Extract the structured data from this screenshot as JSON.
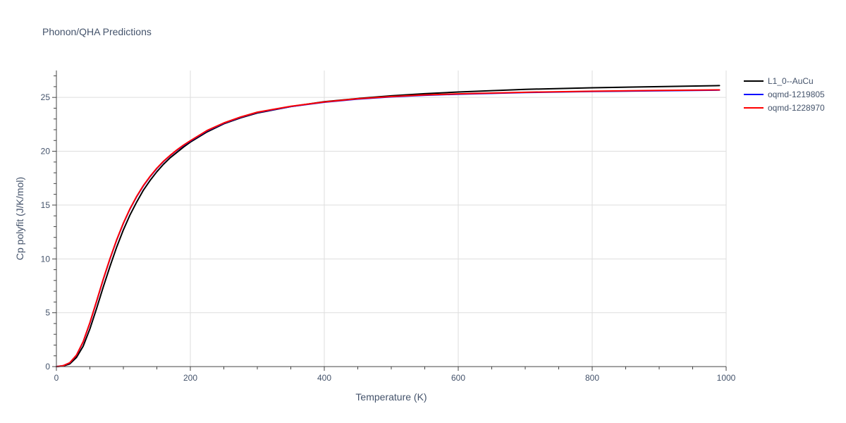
{
  "chart_data": {
    "type": "line",
    "title": "Phonon/QHA Predictions",
    "xlabel": "Temperature (K)",
    "ylabel": "Cp polyfit (J/K/mol)",
    "xlim": [
      0,
      1000
    ],
    "ylim": [
      0,
      27.5
    ],
    "x_ticks": [
      0,
      200,
      400,
      600,
      800,
      1000
    ],
    "y_ticks": [
      0,
      5,
      10,
      15,
      20,
      25
    ],
    "grid": true,
    "legend_position": "top-right",
    "series": [
      {
        "name": "L1_0--AuCu",
        "color": "#000000",
        "x": [
          0,
          10,
          20,
          30,
          40,
          50,
          60,
          70,
          80,
          90,
          100,
          110,
          120,
          130,
          140,
          150,
          160,
          170,
          180,
          190,
          200,
          225,
          250,
          275,
          300,
          350,
          400,
          450,
          500,
          550,
          600,
          700,
          800,
          900,
          990
        ],
        "y": [
          0,
          0.05,
          0.25,
          0.85,
          1.9,
          3.5,
          5.4,
          7.4,
          9.3,
          11.1,
          12.7,
          14.1,
          15.3,
          16.4,
          17.3,
          18.1,
          18.8,
          19.4,
          19.9,
          20.4,
          20.85,
          21.8,
          22.55,
          23.1,
          23.55,
          24.15,
          24.6,
          24.9,
          25.15,
          25.35,
          25.5,
          25.75,
          25.9,
          26.0,
          26.1
        ]
      },
      {
        "name": "oqmd-1219805",
        "color": "#0000ff",
        "x": [
          0,
          10,
          20,
          30,
          40,
          50,
          60,
          70,
          80,
          90,
          100,
          110,
          120,
          130,
          140,
          150,
          160,
          170,
          180,
          190,
          200,
          225,
          250,
          275,
          300,
          350,
          400,
          450,
          500,
          550,
          600,
          700,
          800,
          900,
          990
        ],
        "y": [
          0,
          0.08,
          0.35,
          1.05,
          2.3,
          4.05,
          6.05,
          8.1,
          10.0,
          11.75,
          13.3,
          14.65,
          15.8,
          16.8,
          17.65,
          18.4,
          19.05,
          19.6,
          20.1,
          20.55,
          20.95,
          21.9,
          22.6,
          23.15,
          23.6,
          24.15,
          24.55,
          24.85,
          25.05,
          25.2,
          25.3,
          25.45,
          25.55,
          25.62,
          25.68
        ]
      },
      {
        "name": "oqmd-1228970",
        "color": "#ff0000",
        "x": [
          0,
          10,
          20,
          30,
          40,
          50,
          60,
          70,
          80,
          90,
          100,
          110,
          120,
          130,
          140,
          150,
          160,
          170,
          180,
          190,
          200,
          225,
          250,
          275,
          300,
          350,
          400,
          450,
          500,
          550,
          600,
          700,
          800,
          900,
          990
        ],
        "y": [
          0,
          0.08,
          0.36,
          1.07,
          2.32,
          4.08,
          6.08,
          8.13,
          10.03,
          11.78,
          13.33,
          14.68,
          15.83,
          16.83,
          17.68,
          18.43,
          19.08,
          19.63,
          20.13,
          20.58,
          20.98,
          21.93,
          22.63,
          23.18,
          23.63,
          24.18,
          24.58,
          24.88,
          25.08,
          25.23,
          25.33,
          25.48,
          25.58,
          25.65,
          25.7
        ]
      }
    ]
  }
}
